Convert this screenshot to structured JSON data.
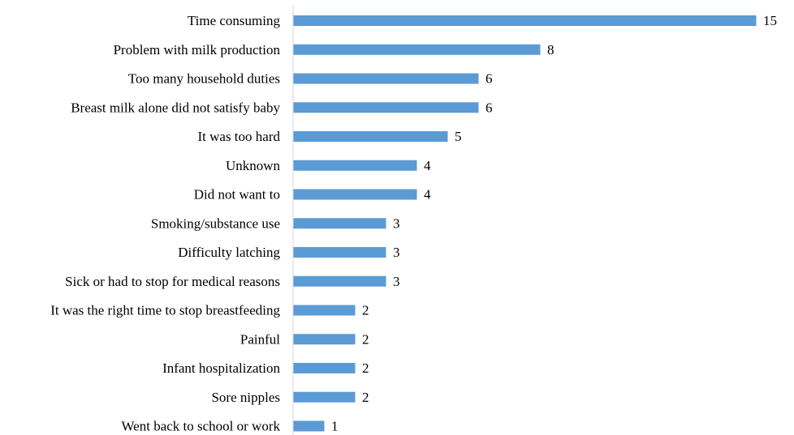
{
  "chart_data": {
    "type": "bar",
    "orientation": "horizontal",
    "title": "",
    "xlabel": "",
    "ylabel": "",
    "categories": [
      "Time consuming",
      "Problem with milk production",
      "Too many household duties",
      "Breast milk alone did not satisfy baby",
      "It was too hard",
      "Unknown",
      "Did not want to",
      "Smoking/substance use",
      "Difficulty latching",
      "Sick or had to stop for medical reasons",
      "It was the right time to stop breastfeeding",
      "Painful",
      "Infant hospitalization",
      "Sore nipples",
      "Went back to school or work"
    ],
    "values": [
      15,
      8,
      6,
      6,
      5,
      4,
      4,
      3,
      3,
      3,
      2,
      2,
      2,
      2,
      1
    ],
    "xlim": [
      0,
      15
    ],
    "grid": false,
    "legend": "none",
    "bar_color": "#5b9bd5",
    "data_labels": true
  }
}
